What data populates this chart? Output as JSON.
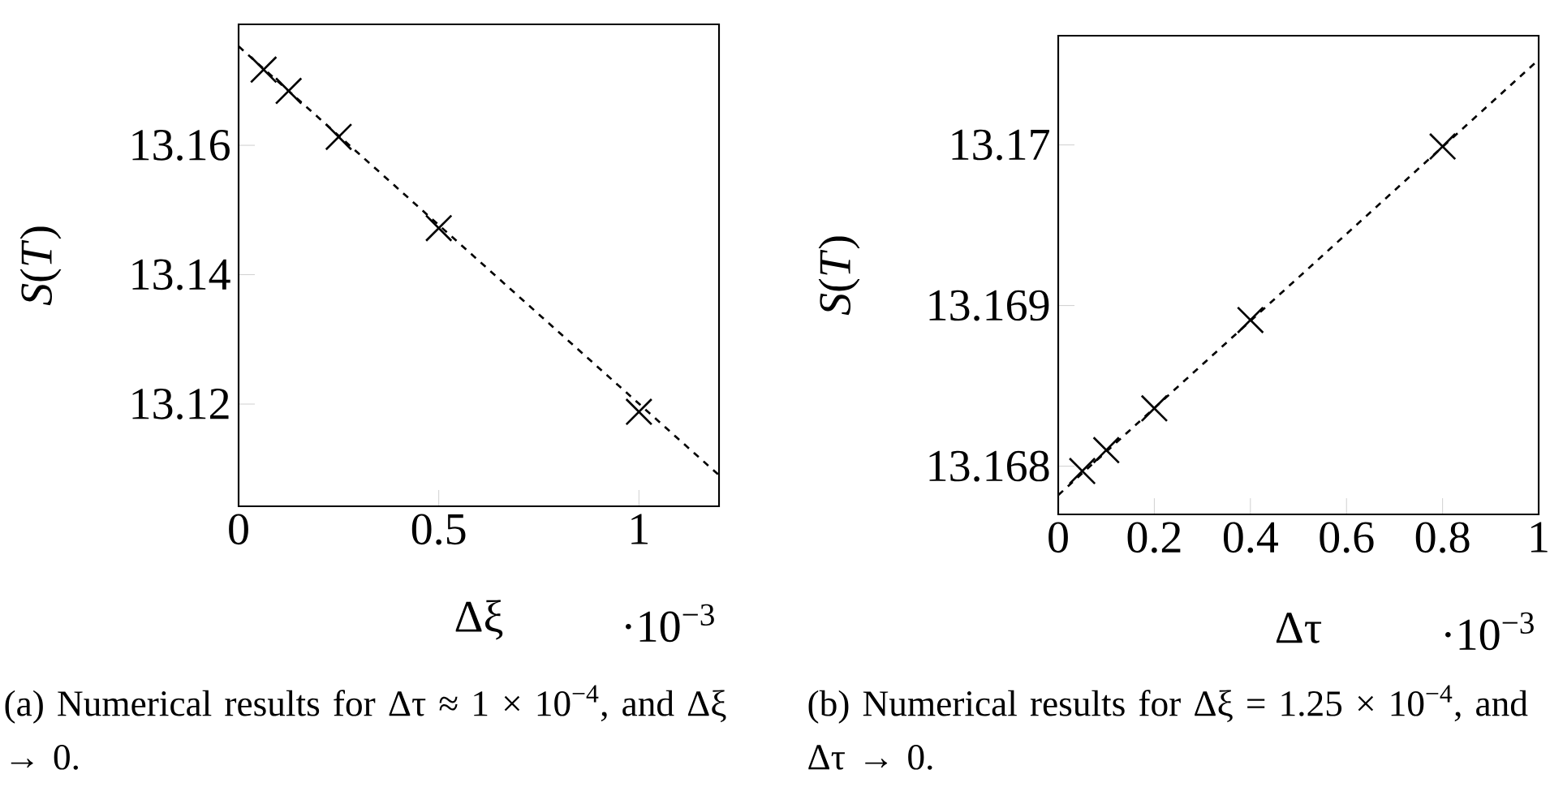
{
  "chart_data": [
    {
      "type": "scatter",
      "xlabel": "Δξ",
      "ylabel": "*S*(*T*)",
      "marker": "cross",
      "annotations": [
        "·10$^{−3}$",
        "(a) Numerical results for Δτ ≈ 1 × 10$^{−4}$, and Δξ → 0."
      ],
      "xlim": [
        0,
        1.2
      ],
      "ylim": [
        13.1042,
        13.1787
      ],
      "xticks": [
        0,
        0.5,
        1
      ],
      "yticks": [
        13.12,
        13.14,
        13.16
      ],
      "series": [
        {
          "color": "#000000",
          "x": [
            0.0625,
            0.125,
            0.25,
            0.5,
            1
          ],
          "values": [
            13.1717,
            13.1684,
            13.1613,
            13.1472,
            13.1188
          ]
        },
        {
          "type": "line",
          "color": "#000000",
          "marker": "none",
          "line_style": "dashed",
          "x": [
            0,
            1.2
          ],
          "values": [
            13.1753,
            13.109
          ]
        }
      ]
    },
    {
      "type": "scatter",
      "xlabel": "Δτ",
      "ylabel": "*S*(*T*)",
      "marker": "cross",
      "annotations": [
        "·10$^{−3}$",
        "(b) Numerical results for Δξ = 1.25 × 10$^{−4}$, and Δτ → 0."
      ],
      "xlim": [
        0,
        1
      ],
      "ylim": [
        13.1677,
        13.17068
      ],
      "xticks": [
        0,
        0.2,
        0.4,
        0.6,
        0.8,
        1
      ],
      "yticks": [
        13.168,
        13.169,
        13.17
      ],
      "series": [
        {
          "color": "#000000",
          "x": [
            0.05,
            0.1,
            0.2,
            0.4,
            0.8
          ],
          "values": [
            13.16797,
            13.1681,
            13.16836,
            13.16891,
            13.16999
          ]
        },
        {
          "type": "line",
          "color": "#000000",
          "marker": "none",
          "line_style": "dashed",
          "x": [
            0,
            1
          ],
          "values": [
            13.16782,
            13.17053
          ]
        }
      ]
    }
  ]
}
